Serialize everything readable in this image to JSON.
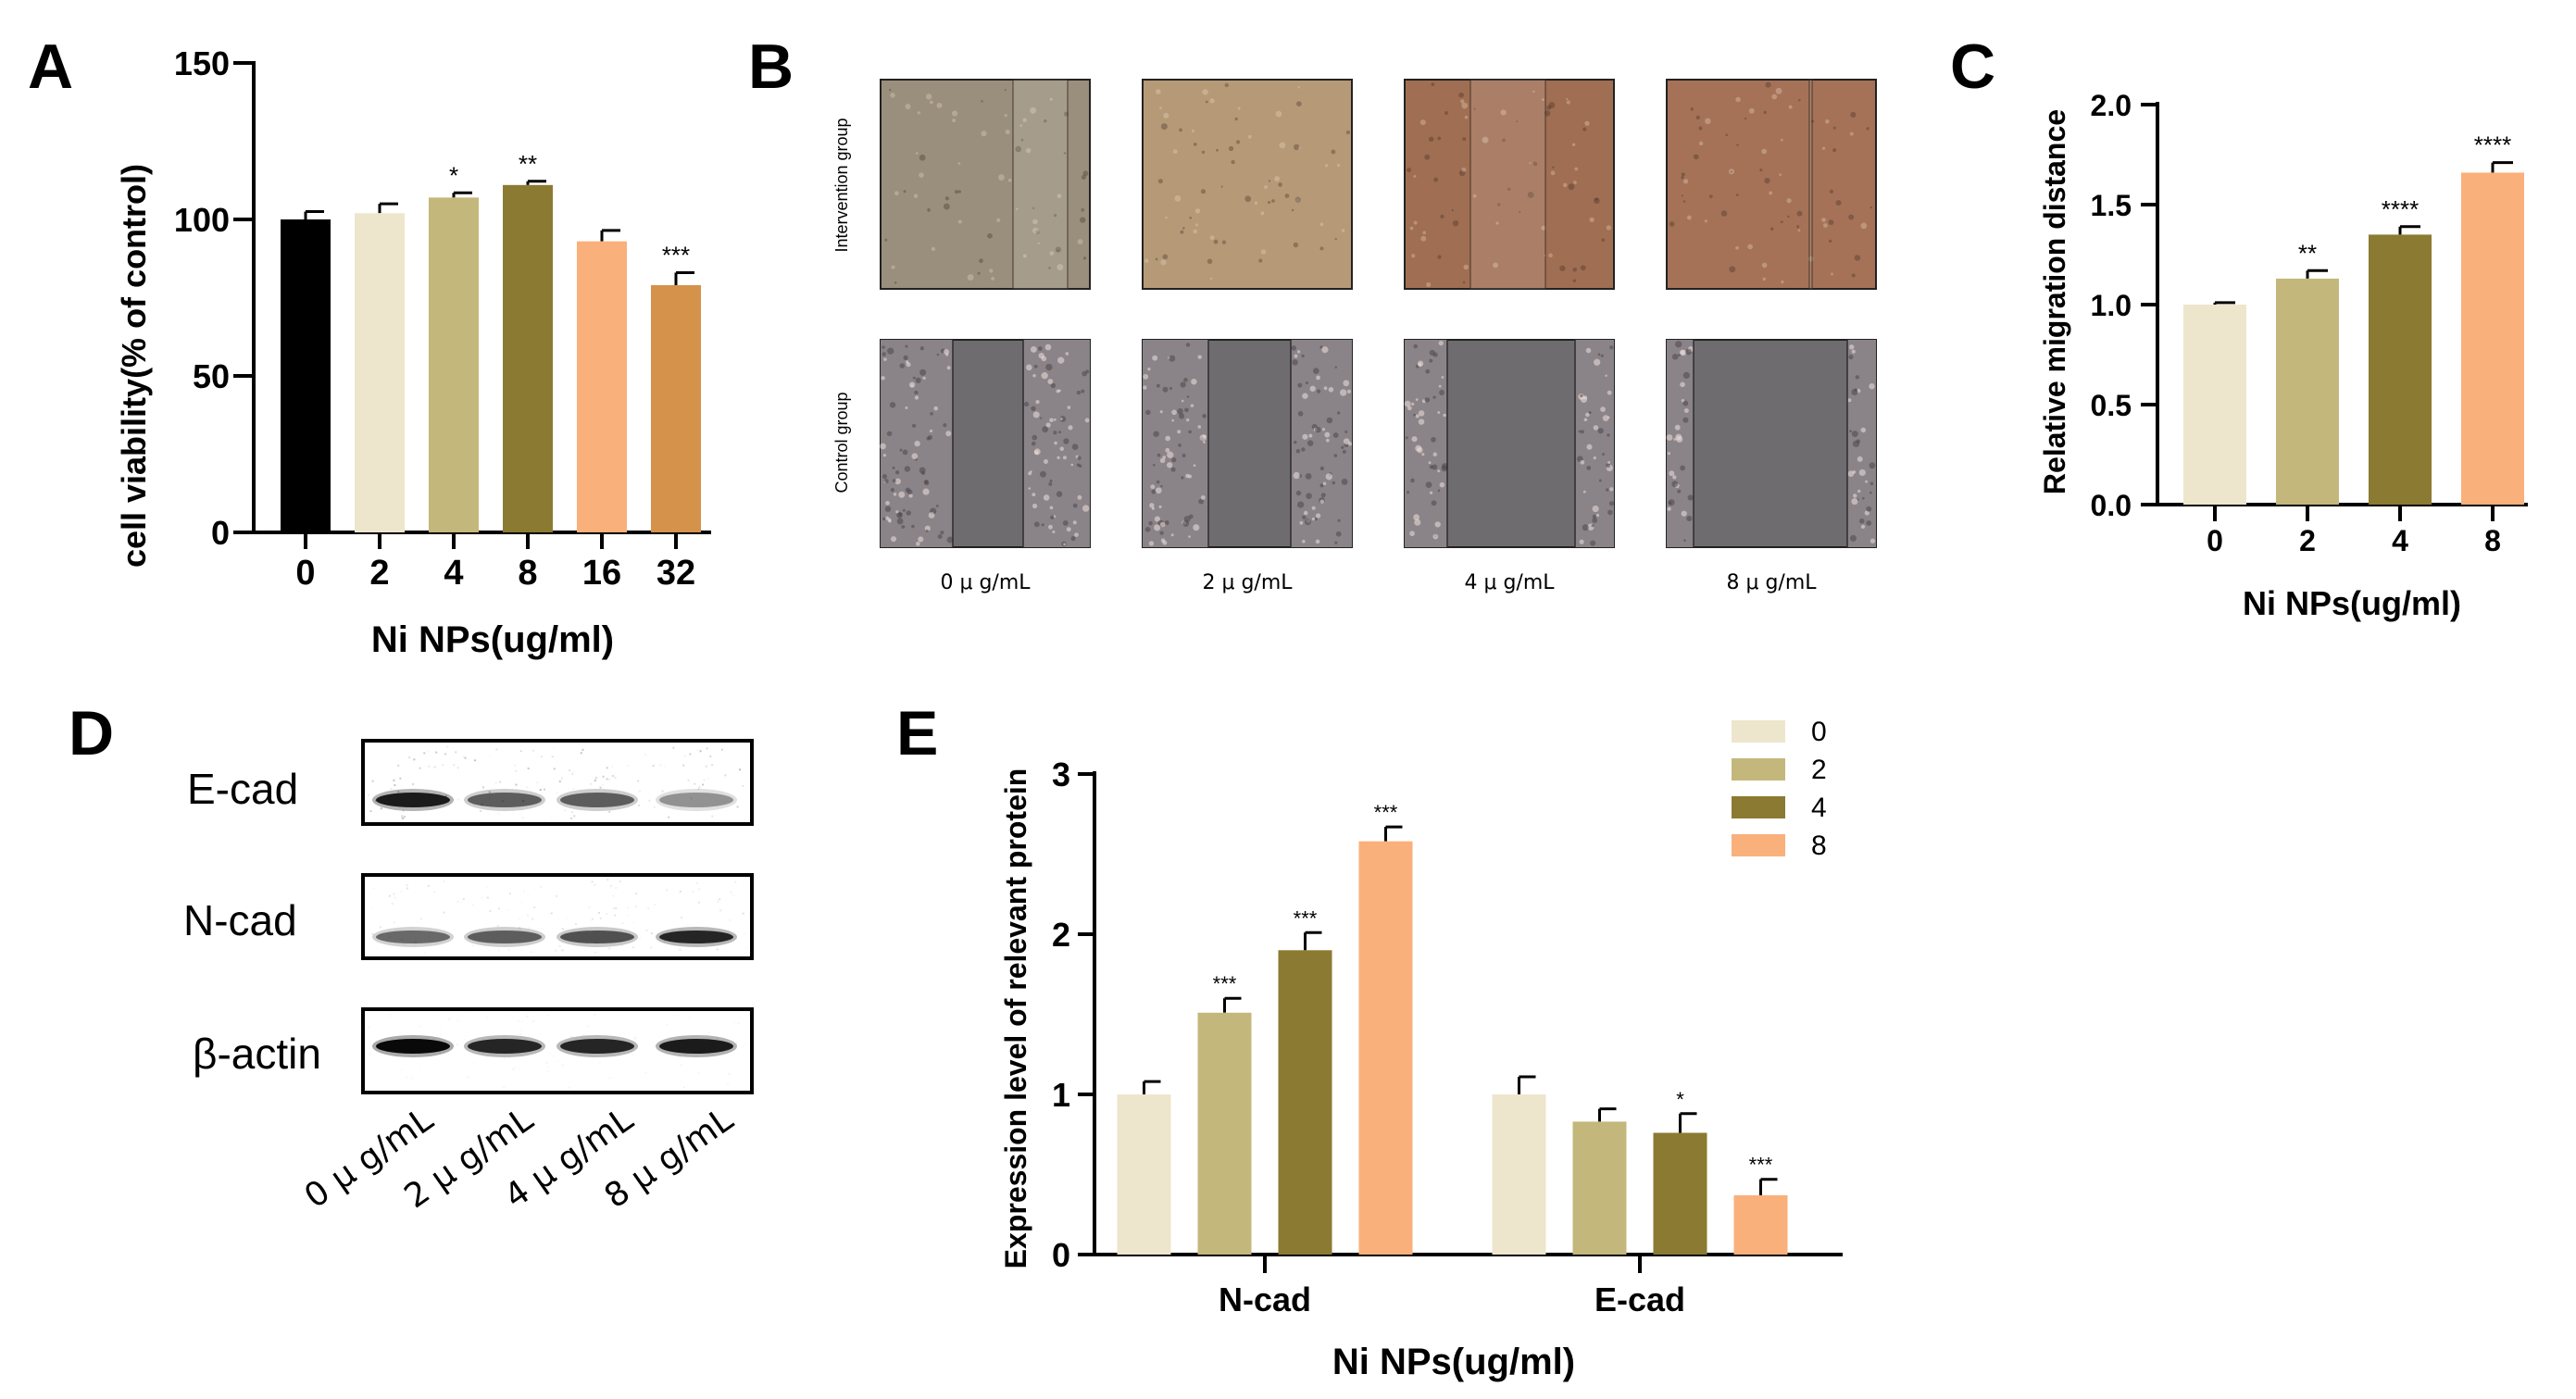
{
  "panels": {
    "a": {
      "letter": "A"
    },
    "b": {
      "letter": "B"
    },
    "c": {
      "letter": "C"
    },
    "d": {
      "letter": "D"
    },
    "e": {
      "letter": "E"
    }
  },
  "colors": {
    "c0": "#000000",
    "c2": "#ede6cc",
    "c4": "#c4b77c",
    "c8": "#8b7a32",
    "c16": "#f9b07a",
    "c32": "#d4924a"
  },
  "chart_data": [
    {
      "id": "A",
      "type": "bar",
      "categories": [
        "0",
        "2",
        "4",
        "8",
        "16",
        "32"
      ],
      "values": [
        100,
        102,
        107,
        111,
        93,
        79
      ],
      "errors": [
        2.5,
        3,
        1.5,
        1.2,
        3.5,
        4
      ],
      "significance": [
        "",
        "",
        "*",
        "**",
        "",
        "***"
      ],
      "colors": [
        "#000000",
        "#ede6cc",
        "#c4b77c",
        "#8b7a32",
        "#f9b07a",
        "#d4924a"
      ],
      "xlabel": "Ni NPs(ug/ml)",
      "ylabel": "cell viability(% of control)",
      "ylim": [
        0,
        150
      ],
      "yticks": [
        0,
        50,
        100,
        150
      ]
    },
    {
      "id": "C",
      "type": "bar",
      "categories": [
        "0",
        "2",
        "4",
        "8"
      ],
      "values": [
        1.0,
        1.13,
        1.35,
        1.66
      ],
      "errors": [
        0.01,
        0.04,
        0.04,
        0.05
      ],
      "significance": [
        "",
        "**",
        "****",
        "****"
      ],
      "colors": [
        "#ede6cc",
        "#c4b77c",
        "#8b7a32",
        "#f9b07a"
      ],
      "xlabel": "Ni NPs(ug/ml)",
      "ylabel": "Relative migration distance",
      "ylim": [
        0,
        2.0
      ],
      "yticks": [
        "0.0",
        "0.5",
        "1.0",
        "1.5",
        "2.0"
      ]
    },
    {
      "id": "E",
      "type": "bar",
      "categories": [
        "N-cad",
        "E-cad"
      ],
      "series": [
        {
          "name": "0",
          "values": [
            1.0,
            1.0
          ],
          "errors": [
            0.08,
            0.11
          ],
          "significance": [
            "",
            ""
          ],
          "color": "#ede6cc"
        },
        {
          "name": "2",
          "values": [
            1.51,
            0.83
          ],
          "errors": [
            0.09,
            0.08
          ],
          "significance": [
            "***",
            ""
          ],
          "color": "#c4b77c"
        },
        {
          "name": "4",
          "values": [
            1.9,
            0.76
          ],
          "errors": [
            0.11,
            0.12
          ],
          "significance": [
            "***",
            "*"
          ],
          "color": "#8b7a32"
        },
        {
          "name": "8",
          "values": [
            2.58,
            0.37
          ],
          "errors": [
            0.09,
            0.1
          ],
          "significance": [
            "***",
            "***"
          ],
          "color": "#f9b07a"
        }
      ],
      "xlabel": "Ni NPs(ug/ml)",
      "ylabel": "Expression level of relevant protein",
      "ylim": [
        0,
        3
      ],
      "yticks": [
        0,
        1,
        2,
        3
      ],
      "legend": "top-right"
    }
  ],
  "panel_b": {
    "row_labels": [
      "Intervention group",
      "Control group"
    ],
    "column_labels": [
      "0 μ g/mL",
      "2 μ g/mL",
      "4 μ g/mL",
      "8 μ g/mL"
    ],
    "tints": [
      "#9a8f7c",
      "#b69a78",
      "#a06e52",
      "#a57258"
    ],
    "control_tint": "#6f6c70"
  },
  "panel_d": {
    "blot_labels": [
      "E-cad",
      "N-cad",
      "β-actin"
    ],
    "lane_labels": [
      "0 μ g/mL",
      "2 μ g/mL",
      "4 μ g/mL",
      "8 μ g/mL"
    ]
  }
}
